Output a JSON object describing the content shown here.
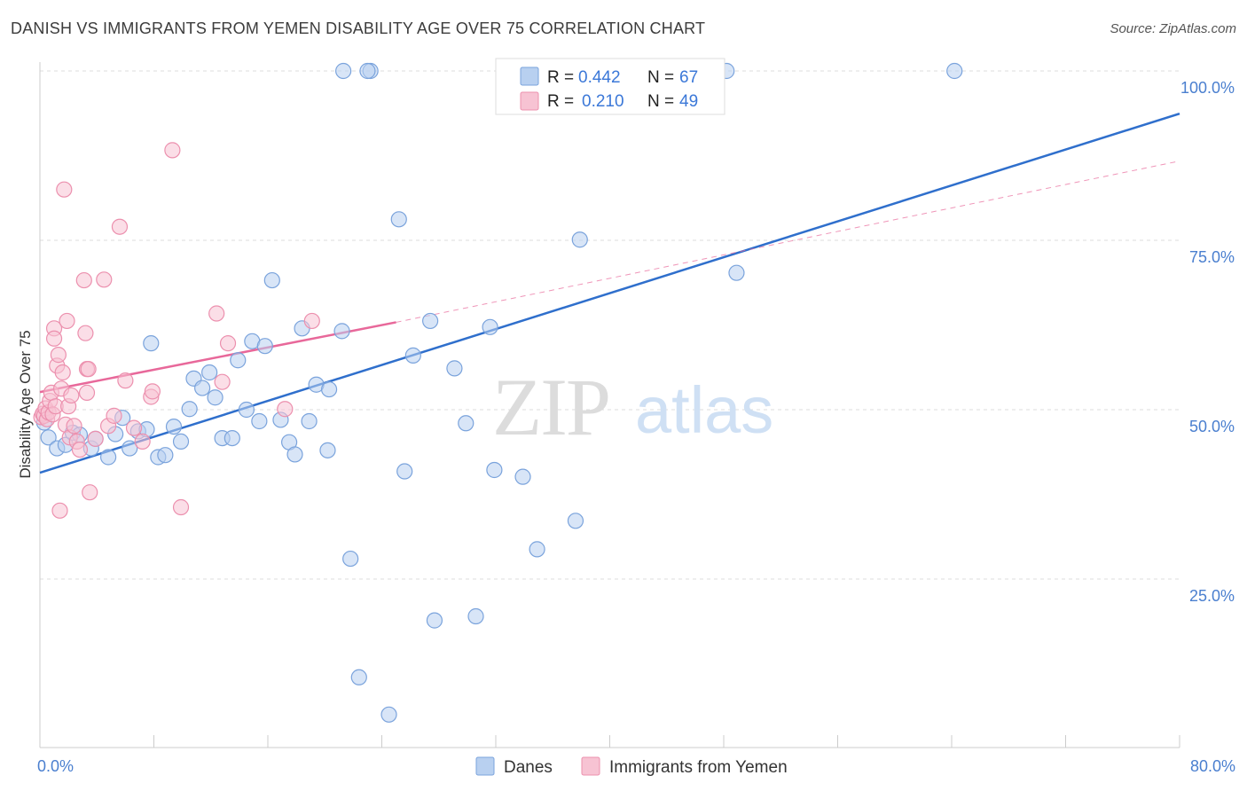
{
  "title": "DANISH VS IMMIGRANTS FROM YEMEN DISABILITY AGE OVER 75 CORRELATION CHART",
  "source": "Source: ZipAtlas.com",
  "watermark": {
    "zip": "ZIP",
    "atlas": "atlas"
  },
  "legend": {
    "items": [
      {
        "r_label": "R =",
        "r_value": "0.442",
        "n_label": "N =",
        "n_value": "67"
      },
      {
        "r_label": "R =",
        "r_value": "0.210",
        "n_label": "N =",
        "n_value": "49"
      }
    ]
  },
  "bottom_legend": {
    "danes": "Danes",
    "yemen": "Immigrants from Yemen"
  },
  "colors": {
    "danes_fill": "#b8d0f0",
    "danes_stroke": "#7aa3dc",
    "danes_line": "#2f6fcc",
    "yemen_fill": "#f7c3d3",
    "yemen_stroke": "#ec90ae",
    "yemen_line": "#e8689a",
    "tick_label": "#4a7fcf",
    "grid": "#dddddd"
  },
  "chart_data": {
    "type": "scatter",
    "title": "DANISH VS IMMIGRANTS FROM YEMEN DISABILITY AGE OVER 75 CORRELATION CHART",
    "xlabel": "",
    "ylabel": "Disability Age Over 75",
    "xlim": [
      0,
      80
    ],
    "ylim": [
      0,
      105
    ],
    "x_ticks": [
      0,
      80
    ],
    "x_tick_labels": [
      "0.0%",
      "80.0%"
    ],
    "y_ticks": [
      25,
      50,
      75,
      100
    ],
    "y_tick_labels": [
      "25.0%",
      "50.0%",
      "75.0%",
      "100.0%"
    ],
    "grid": true,
    "legend_position": "top-center",
    "series": [
      {
        "name": "Danes",
        "r": 0.442,
        "n": 67,
        "trend": {
          "x": [
            0,
            80
          ],
          "y": [
            40.7,
            93.7
          ],
          "style": "solid"
        },
        "points": [
          [
            0.6,
            45.9
          ],
          [
            1.2,
            44.3
          ],
          [
            1.8,
            44.8
          ],
          [
            2.3,
            46.6
          ],
          [
            2.8,
            46.3
          ],
          [
            3.6,
            44.3
          ],
          [
            3.9,
            45.7
          ],
          [
            4.8,
            43.0
          ],
          [
            5.3,
            46.4
          ],
          [
            5.8,
            48.8
          ],
          [
            6.3,
            44.3
          ],
          [
            6.9,
            46.8
          ],
          [
            7.5,
            47.1
          ],
          [
            7.8,
            59.8
          ],
          [
            8.3,
            43.0
          ],
          [
            8.8,
            43.3
          ],
          [
            9.4,
            47.5
          ],
          [
            9.9,
            45.3
          ],
          [
            10.5,
            50.1
          ],
          [
            10.8,
            54.6
          ],
          [
            11.4,
            53.2
          ],
          [
            11.9,
            55.5
          ],
          [
            12.3,
            51.8
          ],
          [
            12.8,
            45.8
          ],
          [
            13.5,
            45.8
          ],
          [
            13.9,
            57.3
          ],
          [
            14.5,
            50.0
          ],
          [
            14.9,
            60.1
          ],
          [
            15.4,
            48.3
          ],
          [
            15.8,
            59.4
          ],
          [
            16.3,
            69.1
          ],
          [
            16.9,
            48.5
          ],
          [
            17.5,
            45.2
          ],
          [
            17.9,
            43.4
          ],
          [
            18.4,
            62.0
          ],
          [
            18.9,
            48.3
          ],
          [
            19.4,
            53.7
          ],
          [
            20.3,
            53.0
          ],
          [
            20.2,
            44.0
          ],
          [
            21.2,
            61.6
          ],
          [
            21.8,
            28.0
          ],
          [
            22.4,
            10.5
          ],
          [
            23.2,
            100.0
          ],
          [
            24.5,
            5.0
          ],
          [
            25.2,
            78.1
          ],
          [
            25.6,
            40.9
          ],
          [
            26.2,
            58.0
          ],
          [
            27.4,
            63.1
          ],
          [
            27.7,
            18.9
          ],
          [
            29.1,
            56.1
          ],
          [
            29.9,
            48.0
          ],
          [
            30.6,
            19.5
          ],
          [
            31.6,
            62.2
          ],
          [
            31.9,
            41.1
          ],
          [
            33.9,
            40.1
          ],
          [
            34.9,
            29.4
          ],
          [
            37.6,
            33.6
          ],
          [
            37.9,
            75.1
          ],
          [
            48.9,
            70.2
          ],
          [
            21.3,
            100.0
          ],
          [
            23.0,
            100.0
          ],
          [
            39.1,
            100.0
          ],
          [
            46.3,
            100.0
          ],
          [
            47.5,
            100.0
          ],
          [
            48.2,
            100.0
          ],
          [
            64.2,
            100.0
          ],
          [
            0.3,
            48.1
          ]
        ]
      },
      {
        "name": "Immigrants from Yemen",
        "r": 0.21,
        "n": 49,
        "trend": {
          "x": [
            0,
            25
          ],
          "y": [
            52.6,
            62.9
          ],
          "style": "solid"
        },
        "trend_extension": {
          "x": [
            25,
            80
          ],
          "y": [
            62.9,
            86.7
          ],
          "style": "dashed"
        },
        "points": [
          [
            0.1,
            48.9
          ],
          [
            0.2,
            49.4
          ],
          [
            0.3,
            49.1
          ],
          [
            0.4,
            50.2
          ],
          [
            0.5,
            48.6
          ],
          [
            0.6,
            49.6
          ],
          [
            0.7,
            51.3
          ],
          [
            0.8,
            52.5
          ],
          [
            0.9,
            49.3
          ],
          [
            1.0,
            62.0
          ],
          [
            1.0,
            60.5
          ],
          [
            1.1,
            50.5
          ],
          [
            1.2,
            56.5
          ],
          [
            1.3,
            58.1
          ],
          [
            1.4,
            35.1
          ],
          [
            1.5,
            53.1
          ],
          [
            1.6,
            55.5
          ],
          [
            1.7,
            82.5
          ],
          [
            1.8,
            47.8
          ],
          [
            1.9,
            63.1
          ],
          [
            2.0,
            50.5
          ],
          [
            2.1,
            45.9
          ],
          [
            2.2,
            52.1
          ],
          [
            2.4,
            47.6
          ],
          [
            2.6,
            45.3
          ],
          [
            2.8,
            44.1
          ],
          [
            3.1,
            69.1
          ],
          [
            3.2,
            61.3
          ],
          [
            3.3,
            52.5
          ],
          [
            3.3,
            56.0
          ],
          [
            3.4,
            56.0
          ],
          [
            3.5,
            37.8
          ],
          [
            3.9,
            45.7
          ],
          [
            4.5,
            69.2
          ],
          [
            4.8,
            47.6
          ],
          [
            5.2,
            49.1
          ],
          [
            5.6,
            77.0
          ],
          [
            6.0,
            54.3
          ],
          [
            6.6,
            47.3
          ],
          [
            7.2,
            45.3
          ],
          [
            7.8,
            51.9
          ],
          [
            7.9,
            52.7
          ],
          [
            9.3,
            88.3
          ],
          [
            9.9,
            35.6
          ],
          [
            12.4,
            64.2
          ],
          [
            12.8,
            54.1
          ],
          [
            13.2,
            59.8
          ],
          [
            17.2,
            50.1
          ],
          [
            19.1,
            63.1
          ]
        ]
      }
    ]
  }
}
